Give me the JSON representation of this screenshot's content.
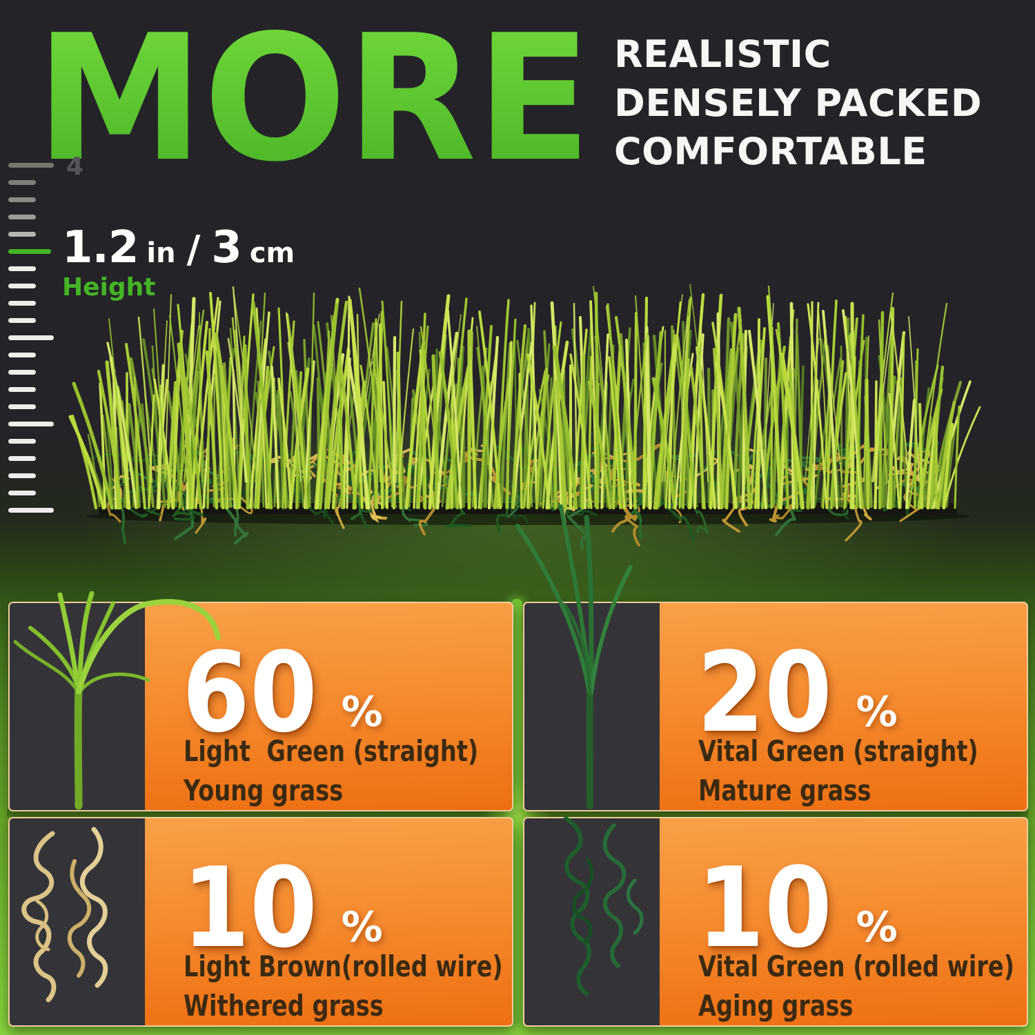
{
  "hero": {
    "big_word": "MORE",
    "headline_lines": [
      "REALISTIC",
      "DENSELY PACKED",
      "COMFORTABLE"
    ],
    "ruler": {
      "top_label": "4"
    },
    "height_callout": {
      "value_in": "1.2",
      "unit_in": "in",
      "separator": "/",
      "value_cm": "3",
      "unit_cm": "cm",
      "label": "Height"
    }
  },
  "cards": [
    {
      "percent": "60",
      "percent_sign": "%",
      "line1": "Light  Green (straight)",
      "line2": "Young grass",
      "blade_color": "#8cc63f"
    },
    {
      "percent": "20",
      "percent_sign": "%",
      "line1": "Vital Green (straight)",
      "line2": "Mature grass",
      "blade_color": "#2c7a36"
    },
    {
      "percent": "10",
      "percent_sign": "%",
      "line1": "Light Brown(rolled wire)",
      "line2": "Withered grass",
      "blade_color": "#dcc387"
    },
    {
      "percent": "10",
      "percent_sign": "%",
      "line1": "Vital Green (rolled wire)",
      "line2": "Aging grass",
      "blade_color": "#1e5e2c"
    }
  ],
  "colors": {
    "accent_green": "#45b427",
    "more_gradient_top": "#74dc3c",
    "more_gradient_bottom": "#47b125",
    "headline_white": "#f6f6f6",
    "percent_white": "#ffffff",
    "label_dark": "#3b2a12",
    "card_orange_top": "#f9a148",
    "card_orange_bottom": "#ee6f13",
    "card_panel_dark": "#343438",
    "card_border": "#f0cf9e",
    "background_dark": "#242428",
    "background_green": "#8ad63f"
  }
}
